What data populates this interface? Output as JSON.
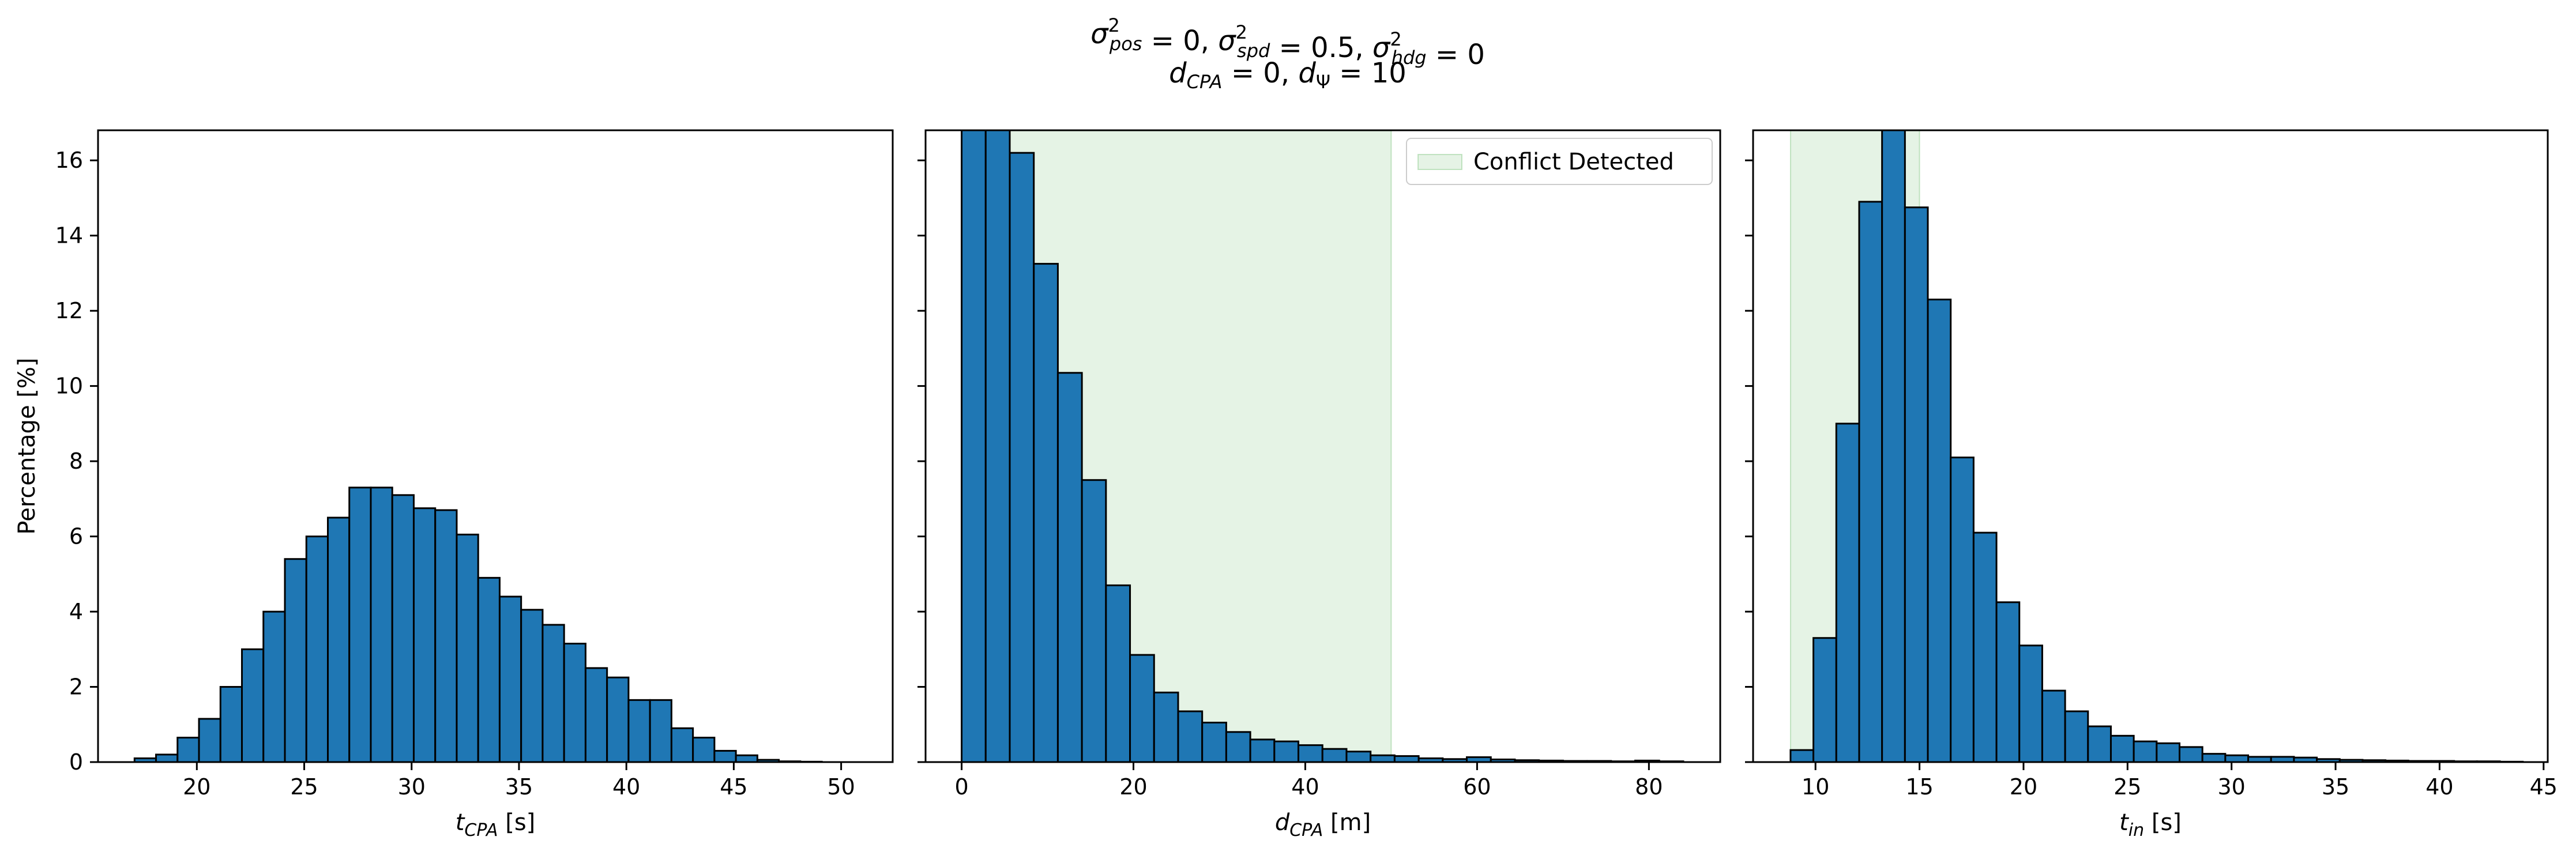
{
  "figure": {
    "title_line1": "σ²pos = 0, σ²spd = 0.5, σ²hdg = 0",
    "title_line2": "dCPA = 0, dΨ = 10"
  },
  "chart_data": [
    {
      "type": "bar",
      "name": "tcpa-histogram",
      "xlabel": "t_CPA [s]",
      "ylabel": "Percentage [%]",
      "xlim": [
        15.4,
        52.4
      ],
      "ylim": [
        0,
        16.8
      ],
      "xticks": [
        20,
        25,
        30,
        35,
        40,
        45,
        50
      ],
      "yticks": [
        0,
        2,
        4,
        6,
        8,
        10,
        12,
        14,
        16
      ],
      "bin_edges": [
        17.1,
        18.1,
        19.1,
        20.1,
        21.1,
        22.1,
        23.1,
        24.1,
        25.1,
        26.1,
        27.1,
        28.1,
        29.1,
        30.1,
        31.1,
        32.1,
        33.1,
        34.1,
        35.1,
        36.1,
        37.1,
        38.1,
        39.1,
        40.1,
        41.1,
        42.1,
        43.1,
        44.1,
        45.1,
        46.1,
        47.1,
        48.1,
        49.1,
        50.1,
        51.1
      ],
      "values": [
        0.1,
        0.2,
        0.65,
        1.15,
        2.0,
        3.0,
        4.0,
        5.4,
        6.0,
        6.5,
        7.3,
        7.3,
        7.1,
        6.75,
        6.7,
        6.05,
        4.9,
        4.4,
        4.05,
        3.65,
        3.15,
        2.5,
        2.25,
        1.65,
        1.65,
        0.9,
        0.65,
        0.3,
        0.18,
        0.06,
        0.02,
        0.01,
        0.0,
        0.0
      ]
    },
    {
      "type": "bar",
      "name": "dcpa-histogram",
      "xlabel": "d_CPA [m]",
      "ylabel": "",
      "xlim": [
        -4.2,
        88.3
      ],
      "ylim": [
        0,
        16.8
      ],
      "xticks": [
        0,
        20,
        40,
        60,
        80
      ],
      "yticks": [
        0,
        2,
        4,
        6,
        8,
        10,
        12,
        14,
        16
      ],
      "bin_edges": [
        0.0,
        2.8,
        5.6,
        8.4,
        11.2,
        14.0,
        16.8,
        19.6,
        22.4,
        25.2,
        28.0,
        30.8,
        33.6,
        36.4,
        39.2,
        42.0,
        44.8,
        47.6,
        50.4,
        53.2,
        56.0,
        58.8,
        61.6,
        64.4,
        67.2,
        70.0,
        72.8,
        75.6,
        78.4,
        81.2,
        84.0
      ],
      "values": [
        17.2,
        17.2,
        16.2,
        13.25,
        10.35,
        7.5,
        4.7,
        2.85,
        1.85,
        1.35,
        1.05,
        0.8,
        0.6,
        0.55,
        0.45,
        0.35,
        0.28,
        0.18,
        0.16,
        0.1,
        0.08,
        0.13,
        0.07,
        0.05,
        0.04,
        0.03,
        0.03,
        0.02,
        0.04,
        0.02
      ],
      "shaded_range": [
        0,
        50
      ],
      "legend": {
        "label": "Conflict Detected",
        "placement": "top-right"
      }
    },
    {
      "type": "bar",
      "name": "tin-histogram",
      "xlabel": "t_in [s]",
      "ylabel": "",
      "xlim": [
        7.0,
        45.2
      ],
      "ylim": [
        0,
        16.8
      ],
      "xticks": [
        10,
        15,
        20,
        25,
        30,
        35,
        40,
        45
      ],
      "yticks": [
        0,
        2,
        4,
        6,
        8,
        10,
        12,
        14,
        16
      ],
      "bin_edges": [
        8.8,
        9.9,
        11.0,
        12.1,
        13.2,
        14.3,
        15.4,
        16.5,
        17.6,
        18.7,
        19.8,
        20.9,
        22.0,
        23.1,
        24.2,
        25.3,
        26.4,
        27.5,
        28.6,
        29.7,
        30.8,
        31.9,
        33.0,
        34.1,
        35.2,
        36.3,
        37.4,
        38.5,
        39.6,
        40.7,
        41.8,
        42.9,
        44.0
      ],
      "values": [
        0.32,
        3.3,
        9.0,
        14.9,
        16.8,
        14.75,
        12.3,
        8.1,
        6.1,
        4.25,
        3.1,
        1.9,
        1.35,
        0.95,
        0.7,
        0.55,
        0.5,
        0.4,
        0.22,
        0.18,
        0.14,
        0.14,
        0.12,
        0.08,
        0.06,
        0.05,
        0.04,
        0.03,
        0.03,
        0.02,
        0.02,
        0.01
      ],
      "shaded_range": [
        8.8,
        15.0
      ]
    }
  ]
}
